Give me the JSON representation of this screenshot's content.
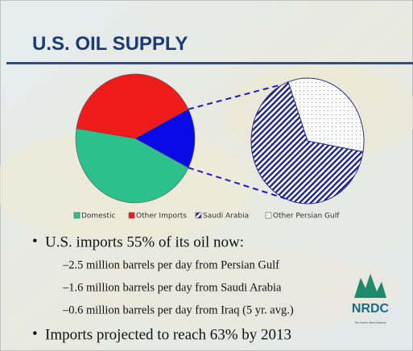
{
  "chart_data": {
    "type": "pie_of_pie",
    "title": "U.S. OIL SUPPLY",
    "categories": [
      "Domestic",
      "Other Imports",
      "Saudi Arabia",
      "Other Persian Gulf"
    ],
    "values": [
      45,
      40,
      10,
      5
    ],
    "colors": [
      "#2cc08c",
      "#ee1b1b",
      "#1c2290",
      "#ffffff"
    ],
    "patterns": [
      null,
      null,
      "hatch",
      "dots"
    ],
    "split_count": 2,
    "split_color": "#0a0ae6",
    "legend": "bottom"
  },
  "bullets": [
    "U.S. imports 55% of its oil now:",
    "Imports projected to reach 63% by 2013"
  ],
  "sub_bullets": [
    "–2.5 million barrels per day from Persian Gulf",
    "–1.6 million barrels per day from Saudi Arabia",
    "–0.6 million barrels per day from Iraq (5 yr. avg.)"
  ],
  "logo": {
    "name": "NRDC",
    "tagline": "The Earth's Best Defense"
  }
}
